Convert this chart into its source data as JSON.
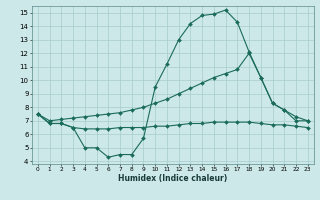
{
  "xlabel": "Humidex (Indice chaleur)",
  "xlim": [
    -0.5,
    23.5
  ],
  "ylim": [
    3.8,
    15.5
  ],
  "yticks": [
    4,
    5,
    6,
    7,
    8,
    9,
    10,
    11,
    12,
    13,
    14,
    15
  ],
  "xticks": [
    0,
    1,
    2,
    3,
    4,
    5,
    6,
    7,
    8,
    9,
    10,
    11,
    12,
    13,
    14,
    15,
    16,
    17,
    18,
    19,
    20,
    21,
    22,
    23
  ],
  "bg_color": "#cce8e8",
  "grid_color": "#a8cccc",
  "line_color": "#1a6b5a",
  "line_width": 0.8,
  "marker_size": 2.0,
  "series": [
    {
      "x": [
        0,
        1,
        2,
        3,
        4,
        5,
        6,
        7,
        8,
        9,
        10,
        11,
        12,
        13,
        14,
        15,
        16,
        17,
        18,
        19,
        20,
        21,
        22,
        23
      ],
      "y": [
        7.5,
        6.8,
        6.8,
        6.5,
        5.0,
        5.0,
        4.3,
        4.5,
        4.5,
        5.7,
        9.5,
        11.2,
        13.0,
        14.2,
        14.8,
        14.9,
        15.2,
        14.3,
        12.1,
        10.2,
        8.3,
        7.8,
        7.0,
        7.0
      ]
    },
    {
      "x": [
        0,
        1,
        2,
        3,
        4,
        5,
        6,
        7,
        8,
        9,
        10,
        11,
        12,
        13,
        14,
        15,
        16,
        17,
        18,
        19,
        20,
        21,
        22,
        23
      ],
      "y": [
        7.5,
        7.0,
        7.1,
        7.2,
        7.3,
        7.4,
        7.5,
        7.6,
        7.8,
        8.0,
        8.3,
        8.6,
        9.0,
        9.4,
        9.8,
        10.2,
        10.5,
        10.8,
        12.0,
        10.2,
        8.3,
        7.8,
        7.3,
        7.0
      ]
    },
    {
      "x": [
        0,
        1,
        2,
        3,
        4,
        5,
        6,
        7,
        8,
        9,
        10,
        11,
        12,
        13,
        14,
        15,
        16,
        17,
        18,
        19,
        20,
        21,
        22,
        23
      ],
      "y": [
        7.5,
        6.8,
        6.8,
        6.5,
        6.4,
        6.4,
        6.4,
        6.5,
        6.5,
        6.5,
        6.6,
        6.6,
        6.7,
        6.8,
        6.8,
        6.9,
        6.9,
        6.9,
        6.9,
        6.8,
        6.7,
        6.7,
        6.6,
        6.5
      ]
    }
  ]
}
